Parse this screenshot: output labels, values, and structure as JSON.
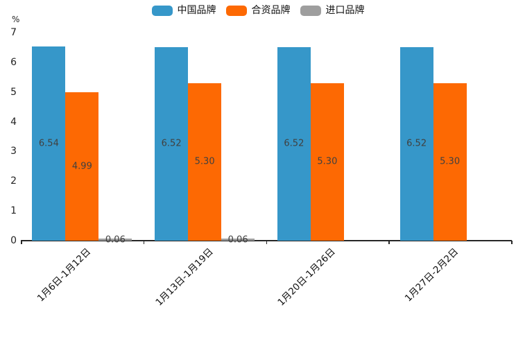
{
  "chart_data": {
    "type": "bar",
    "title": "",
    "ylabel": "%",
    "xlabel": "",
    "ylim": [
      0,
      7
    ],
    "yticks": [
      0,
      1,
      2,
      3,
      4,
      5,
      6,
      7
    ],
    "grid": false,
    "legend_position": "top-center",
    "value_labels_shown": true,
    "categories": [
      "1月6日-1月12日",
      "1月13日-1月19日",
      "1月20日-1月26日",
      "1月27日-2月2日"
    ],
    "series": [
      {
        "name": "中国品牌",
        "color": "#3697c9",
        "values": [
          6.54,
          6.52,
          6.52,
          6.52
        ],
        "labels": [
          "6.54",
          "6.52",
          "6.52",
          "6.52"
        ]
      },
      {
        "name": "合资品牌",
        "color": "#fd6903",
        "values": [
          4.99,
          5.3,
          5.3,
          5.3
        ],
        "labels": [
          "4.99",
          "5.30",
          "5.30",
          "5.30"
        ]
      },
      {
        "name": "进口品牌",
        "color": "#9e9e9e",
        "values": [
          0.06,
          0.06,
          0,
          0
        ],
        "labels": [
          "0.06",
          "0.06",
          "",
          ""
        ]
      }
    ]
  },
  "colors": {
    "axis": "#262626",
    "value_label": "#404040",
    "tick_label": "#222222",
    "background": "#ffffff"
  }
}
